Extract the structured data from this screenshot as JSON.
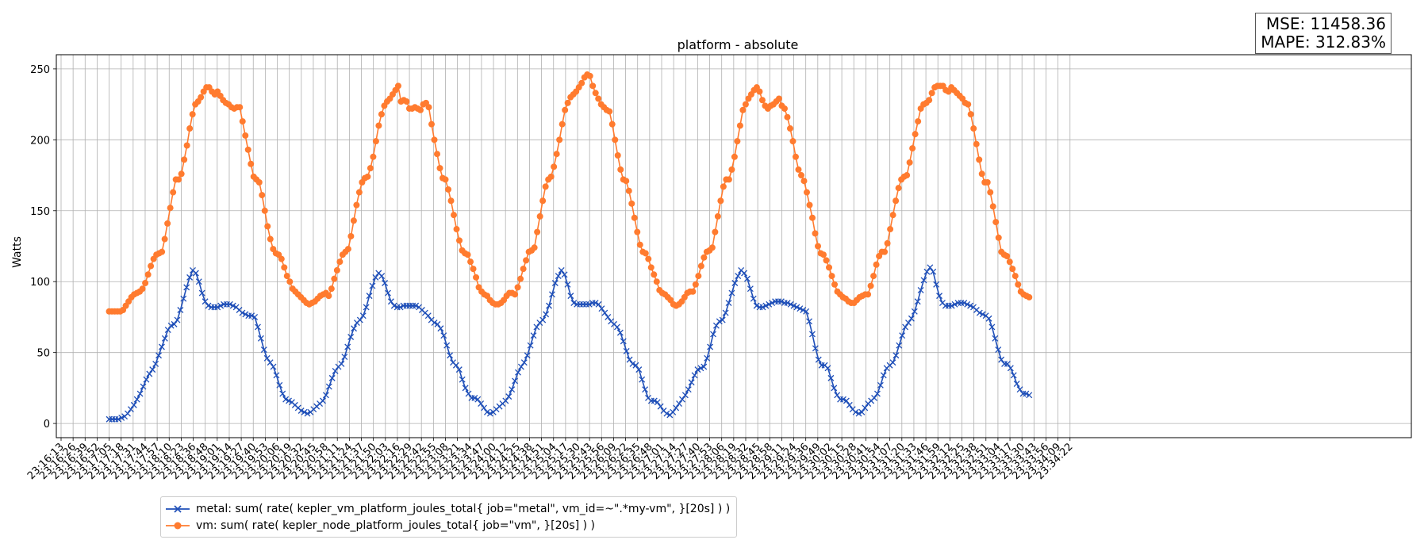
{
  "chart_data": {
    "type": "line",
    "title": "platform - absolute",
    "xlabel": "",
    "ylabel": "Watts",
    "ylim": [
      -10,
      260
    ],
    "yticks": [
      0,
      50,
      100,
      150,
      200,
      250
    ],
    "grid": true,
    "legend_position": "bottom-left",
    "x_tick_labels": [
      "23:16:13",
      "23:16:26",
      "23:16:39",
      "23:16:52",
      "23:17:05",
      "23:17:18",
      "23:17:31",
      "23:17:44",
      "23:17:57",
      "23:18:10",
      "23:18:23",
      "23:18:36",
      "23:18:48",
      "23:19:01",
      "23:19:14",
      "23:19:27",
      "23:19:40",
      "23:19:53",
      "23:20:06",
      "23:20:19",
      "23:20:32",
      "23:20:45",
      "23:20:58",
      "23:21:11",
      "23:21:24",
      "23:21:37",
      "23:21:50",
      "23:22:03",
      "23:22:16",
      "23:22:29",
      "23:22:42",
      "23:22:55",
      "23:23:08",
      "23:23:21",
      "23:23:34",
      "23:23:47",
      "23:24:00",
      "23:24:12",
      "23:24:25",
      "23:24:38",
      "23:24:51",
      "23:25:04",
      "23:25:17",
      "23:25:30",
      "23:25:43",
      "23:25:56",
      "23:26:09",
      "23:26:22",
      "23:26:35",
      "23:26:48",
      "23:27:01",
      "23:27:14",
      "23:27:27",
      "23:27:40",
      "23:27:53",
      "23:28:06",
      "23:28:19",
      "23:28:32",
      "23:28:45",
      "23:28:58",
      "23:29:11",
      "23:29:24",
      "23:29:36",
      "23:29:49",
      "23:30:02",
      "23:30:15",
      "23:30:28",
      "23:30:41",
      "23:30:54",
      "23:31:07",
      "23:31:20",
      "23:31:33",
      "23:31:46",
      "23:31:59",
      "23:32:12",
      "23:32:25",
      "23:32:38",
      "23:32:51",
      "23:33:04",
      "23:33:17",
      "23:33:30",
      "23:33:43",
      "23:33:56",
      "23:34:09",
      "23:34:22"
    ],
    "series": [
      {
        "name": "metal: sum( rate( kepler_vm_platform_joules_total{ job=\"metal\", vm_id=~\".*my-vm\", }[20s] ) )",
        "color": "#1f4fb8",
        "marker": "x",
        "start_tick": 4,
        "end_tick": 80.6,
        "values": [
          3,
          3,
          3,
          3,
          4,
          5,
          7,
          10,
          13,
          17,
          21,
          26,
          31,
          35,
          38,
          42,
          48,
          54,
          60,
          66,
          69,
          70,
          73,
          80,
          88,
          96,
          103,
          108,
          106,
          100,
          92,
          86,
          83,
          82,
          82,
          82,
          83,
          84,
          84,
          84,
          83,
          82,
          80,
          78,
          77,
          76,
          76,
          75,
          68,
          60,
          52,
          46,
          43,
          40,
          34,
          27,
          21,
          17,
          16,
          15,
          13,
          11,
          9,
          8,
          7,
          8,
          10,
          12,
          14,
          16,
          20,
          26,
          32,
          37,
          40,
          42,
          47,
          54,
          61,
          67,
          71,
          73,
          76,
          82,
          90,
          97,
          103,
          106,
          104,
          99,
          92,
          86,
          83,
          82,
          82,
          83,
          83,
          83,
          83,
          83,
          82,
          80,
          78,
          76,
          73,
          71,
          70,
          67,
          62,
          55,
          48,
          43,
          41,
          38,
          31,
          25,
          21,
          18,
          18,
          17,
          14,
          11,
          8,
          7,
          8,
          10,
          12,
          14,
          16,
          19,
          24,
          30,
          36,
          40,
          43,
          48,
          55,
          62,
          68,
          71,
          73,
          77,
          83,
          91,
          99,
          104,
          108,
          105,
          98,
          90,
          85,
          84,
          84,
          84,
          84,
          84,
          85,
          85,
          84,
          81,
          78,
          75,
          72,
          70,
          68,
          64,
          58,
          51,
          45,
          42,
          41,
          38,
          31,
          24,
          18,
          16,
          16,
          15,
          12,
          9,
          7,
          6,
          8,
          11,
          14,
          17,
          20,
          24,
          29,
          34,
          38,
          39,
          40,
          46,
          54,
          63,
          69,
          72,
          73,
          78,
          85,
          92,
          99,
          104,
          108,
          106,
          102,
          95,
          88,
          83,
          82,
          82,
          83,
          84,
          85,
          86,
          86,
          86,
          85,
          85,
          84,
          83,
          82,
          81,
          80,
          79,
          72,
          63,
          53,
          45,
          41,
          41,
          39,
          32,
          25,
          20,
          17,
          17,
          16,
          13,
          10,
          8,
          7,
          8,
          11,
          14,
          16,
          18,
          21,
          27,
          34,
          39,
          41,
          43,
          48,
          55,
          62,
          68,
          71,
          74,
          79,
          86,
          94,
          101,
          107,
          110,
          107,
          98,
          90,
          85,
          83,
          83,
          83,
          84,
          85,
          85,
          85,
          84,
          83,
          82,
          80,
          78,
          77,
          76,
          74,
          68,
          60,
          52,
          45,
          42,
          42,
          39,
          34,
          28,
          24,
          21,
          21,
          20
        ]
      },
      {
        "name": "vm: sum( rate( kepler_node_platform_joules_total{ job=\"vm\", }[20s] ) )",
        "color": "#ff7b2f",
        "marker": "o",
        "start_tick": 4,
        "end_tick": 80.6,
        "values": [
          79,
          79,
          79,
          79,
          79,
          80,
          83,
          86,
          89,
          91,
          92,
          93,
          95,
          99,
          105,
          111,
          116,
          119,
          120,
          121,
          130,
          141,
          152,
          163,
          172,
          172,
          176,
          186,
          196,
          208,
          218,
          225,
          227,
          230,
          234,
          237,
          237,
          234,
          232,
          234,
          231,
          228,
          226,
          225,
          223,
          222,
          223,
          223,
          213,
          203,
          193,
          183,
          174,
          172,
          170,
          161,
          150,
          139,
          130,
          123,
          120,
          119,
          116,
          110,
          104,
          100,
          95,
          93,
          91,
          89,
          87,
          85,
          84,
          85,
          86,
          88,
          90,
          91,
          92,
          90,
          95,
          102,
          108,
          114,
          119,
          121,
          123,
          132,
          143,
          154,
          163,
          170,
          173,
          174,
          180,
          188,
          199,
          210,
          218,
          224,
          227,
          229,
          232,
          235,
          238,
          227,
          228,
          227,
          222,
          222,
          223,
          222,
          221,
          225,
          226,
          223,
          211,
          200,
          190,
          180,
          173,
          172,
          165,
          157,
          147,
          137,
          129,
          122,
          120,
          119,
          114,
          109,
          103,
          96,
          93,
          91,
          90,
          87,
          85,
          84,
          84,
          85,
          87,
          90,
          92,
          92,
          91,
          96,
          102,
          109,
          115,
          121,
          122,
          124,
          135,
          146,
          157,
          167,
          172,
          174,
          181,
          190,
          200,
          211,
          221,
          226,
          230,
          232,
          234,
          237,
          240,
          244,
          246,
          245,
          238,
          233,
          229,
          225,
          223,
          221,
          220,
          211,
          200,
          189,
          179,
          172,
          171,
          164,
          155,
          145,
          135,
          126,
          121,
          120,
          116,
          110,
          105,
          100,
          94,
          92,
          91,
          89,
          87,
          84,
          83,
          84,
          86,
          89,
          92,
          93,
          93,
          98,
          104,
          111,
          117,
          121,
          122,
          124,
          135,
          146,
          157,
          167,
          172,
          172,
          179,
          188,
          199,
          210,
          221,
          225,
          229,
          232,
          235,
          237,
          234,
          228,
          224,
          222,
          224,
          225,
          227,
          229,
          224,
          222,
          216,
          208,
          199,
          188,
          179,
          175,
          171,
          163,
          154,
          145,
          134,
          125,
          120,
          119,
          115,
          110,
          104,
          98,
          93,
          91,
          89,
          88,
          86,
          85,
          85,
          87,
          89,
          90,
          91,
          91,
          97,
          104,
          112,
          118,
          121,
          121,
          127,
          137,
          147,
          157,
          166,
          172,
          174,
          175,
          184,
          194,
          204,
          213,
          222,
          225,
          226,
          228,
          233,
          237,
          238,
          238,
          238,
          235,
          234,
          237,
          235,
          233,
          231,
          229,
          226,
          225,
          218,
          208,
          197,
          186,
          176,
          170,
          170,
          163,
          153,
          142,
          131,
          121,
          119,
          118,
          114,
          109,
          104,
          98,
          93,
          91,
          90,
          89
        ]
      }
    ]
  },
  "metrics": {
    "mse": "MSE: 11458.36",
    "mape": "MAPE: 312.83%"
  }
}
